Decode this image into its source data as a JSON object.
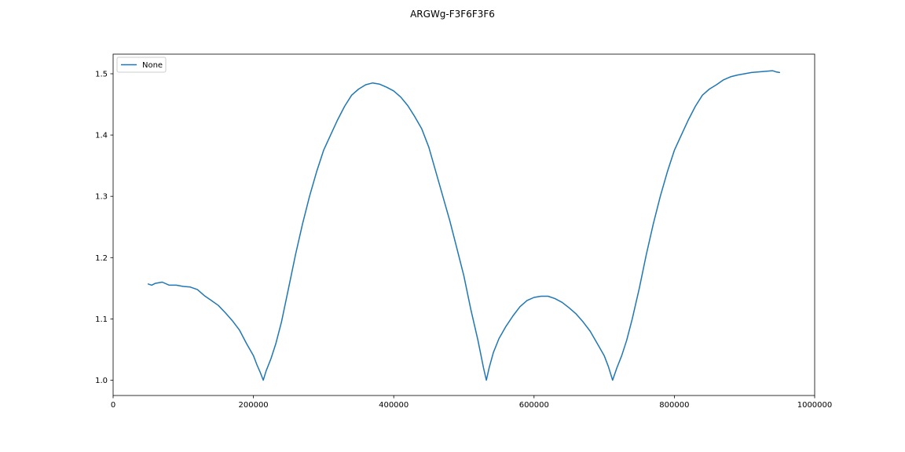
{
  "chart_data": {
    "type": "line",
    "title": "ARGWg-F3F6F3F6",
    "xlabel": "",
    "ylabel": "",
    "xlim": [
      0,
      1000000
    ],
    "ylim": [
      0.975,
      1.532
    ],
    "x_ticks": [
      0,
      200000,
      400000,
      600000,
      800000,
      1000000
    ],
    "x_tick_labels": [
      "0",
      "200000",
      "400000",
      "600000",
      "800000",
      "1000000"
    ],
    "y_ticks": [
      1.0,
      1.1,
      1.2,
      1.3,
      1.4,
      1.5
    ],
    "y_tick_labels": [
      "1.0",
      "1.1",
      "1.2",
      "1.3",
      "1.4",
      "1.5"
    ],
    "grid": false,
    "legend_position": "top-left",
    "color": "#1f77b4",
    "series": [
      {
        "name": "None",
        "color": "#1f77b4",
        "x": [
          50000,
          55000,
          60000,
          70000,
          80000,
          90000,
          100000,
          110000,
          120000,
          130000,
          140000,
          150000,
          160000,
          170000,
          180000,
          190000,
          200000,
          205000,
          210000,
          214000,
          218000,
          225000,
          232000,
          240000,
          250000,
          260000,
          270000,
          280000,
          290000,
          300000,
          310000,
          320000,
          330000,
          340000,
          350000,
          360000,
          370000,
          380000,
          390000,
          400000,
          410000,
          420000,
          430000,
          440000,
          450000,
          460000,
          470000,
          480000,
          490000,
          500000,
          510000,
          520000,
          528000,
          532000,
          536000,
          542000,
          550000,
          560000,
          570000,
          580000,
          590000,
          600000,
          610000,
          620000,
          630000,
          640000,
          650000,
          660000,
          670000,
          680000,
          690000,
          700000,
          706000,
          712000,
          718000,
          725000,
          732000,
          740000,
          750000,
          760000,
          770000,
          780000,
          790000,
          800000,
          810000,
          820000,
          830000,
          840000,
          850000,
          860000,
          870000,
          880000,
          890000,
          900000,
          910000,
          920000,
          930000,
          940000,
          945000,
          950000
        ],
        "values": [
          1.157,
          1.155,
          1.158,
          1.16,
          1.155,
          1.155,
          1.153,
          1.152,
          1.148,
          1.138,
          1.13,
          1.122,
          1.11,
          1.097,
          1.082,
          1.06,
          1.04,
          1.025,
          1.012,
          1.0,
          1.015,
          1.035,
          1.06,
          1.095,
          1.15,
          1.205,
          1.255,
          1.3,
          1.34,
          1.375,
          1.4,
          1.425,
          1.447,
          1.465,
          1.475,
          1.482,
          1.485,
          1.483,
          1.478,
          1.472,
          1.462,
          1.448,
          1.43,
          1.41,
          1.38,
          1.34,
          1.3,
          1.26,
          1.215,
          1.17,
          1.115,
          1.065,
          1.02,
          1.0,
          1.02,
          1.045,
          1.068,
          1.088,
          1.105,
          1.12,
          1.13,
          1.135,
          1.137,
          1.137,
          1.133,
          1.127,
          1.118,
          1.108,
          1.095,
          1.08,
          1.06,
          1.04,
          1.022,
          1.0,
          1.02,
          1.04,
          1.065,
          1.1,
          1.15,
          1.205,
          1.255,
          1.3,
          1.34,
          1.375,
          1.4,
          1.425,
          1.447,
          1.465,
          1.475,
          1.482,
          1.49,
          1.495,
          1.498,
          1.5,
          1.502,
          1.503,
          1.504,
          1.505,
          1.503,
          1.502
        ]
      }
    ]
  }
}
